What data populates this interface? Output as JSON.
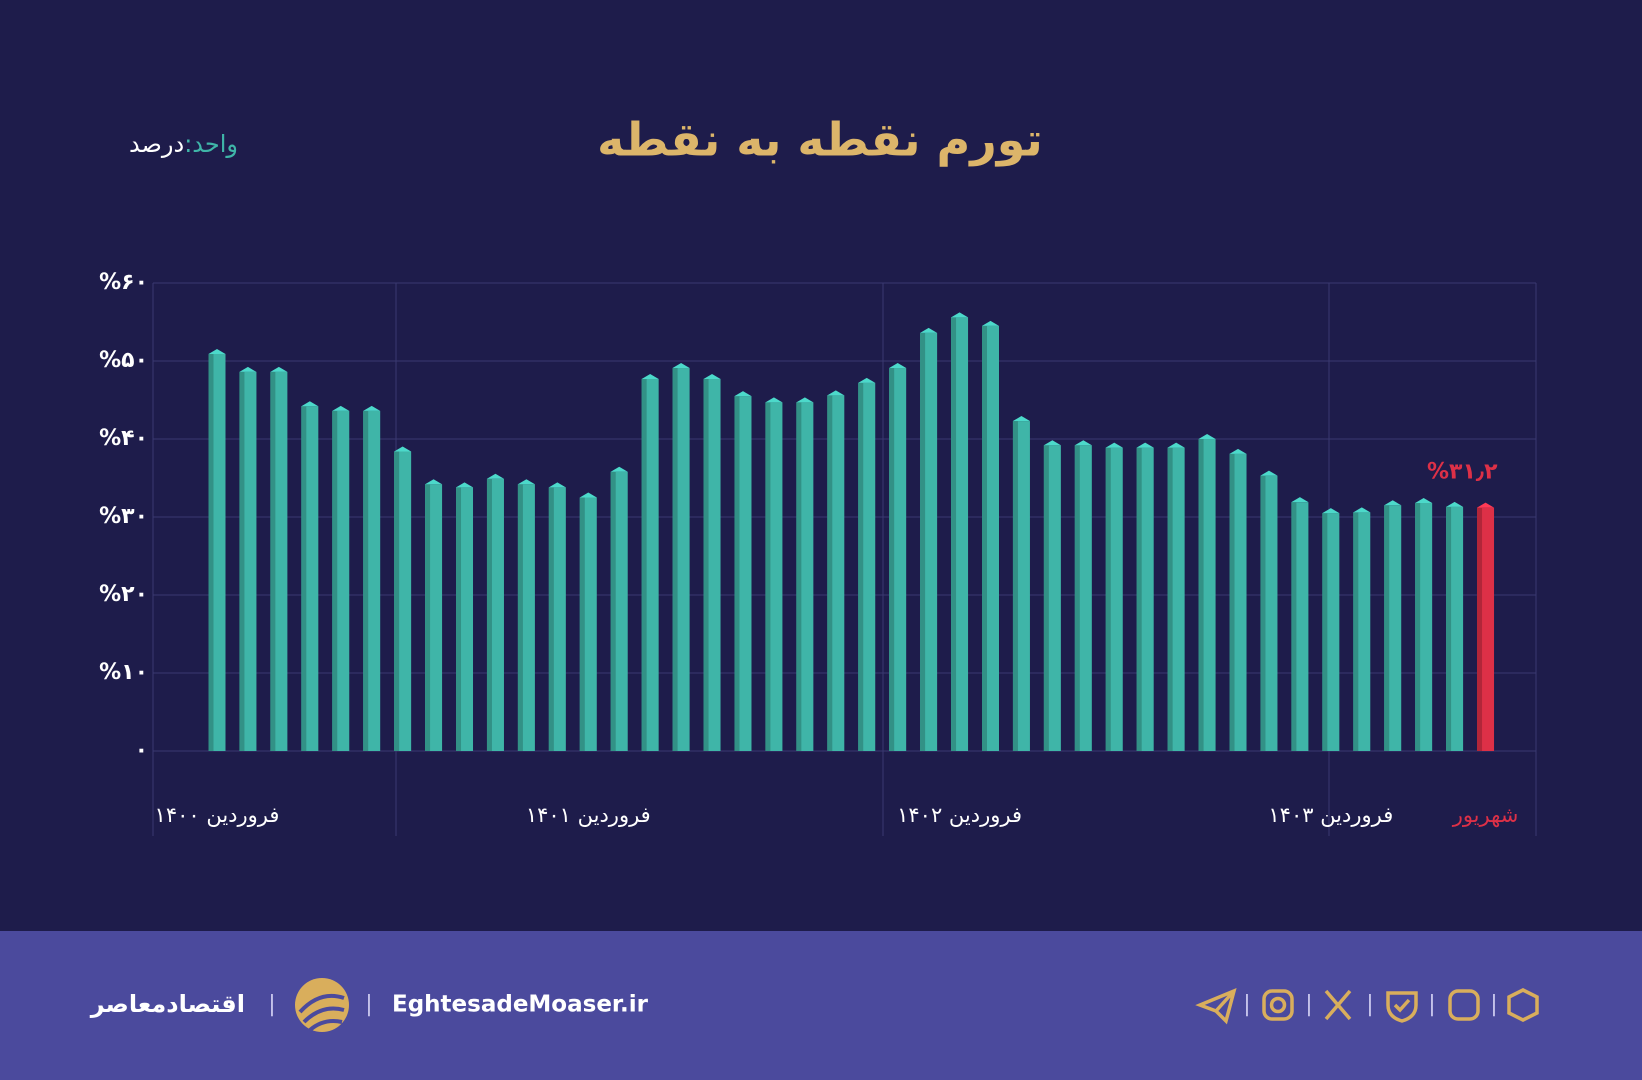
{
  "chart_data": {
    "type": "bar",
    "title": "تورم نقطه به نقطه",
    "unit_label": "واحد:",
    "unit": "درصد",
    "categories": [
      "فروردین ۱۴۰۰",
      null,
      null,
      null,
      null,
      null,
      null,
      null,
      null,
      null,
      null,
      null,
      "فروردین ۱۴۰۱",
      null,
      null,
      null,
      null,
      null,
      null,
      null,
      null,
      null,
      null,
      null,
      "فروردین ۱۴۰۲",
      null,
      null,
      null,
      null,
      null,
      null,
      null,
      null,
      null,
      null,
      null,
      "فروردین ۱۴۰۳",
      null,
      null,
      null,
      null,
      "شهریور"
    ],
    "values": [
      50.9,
      48.6,
      48.6,
      44.2,
      43.6,
      43.6,
      38.4,
      34.2,
      33.8,
      34.9,
      34.2,
      33.8,
      32.5,
      35.8,
      47.7,
      49.1,
      47.7,
      45.5,
      44.7,
      44.7,
      45.6,
      47.2,
      49.1,
      53.6,
      55.6,
      54.5,
      42.3,
      39.2,
      39.2,
      38.9,
      38.9,
      38.9,
      40.0,
      38.1,
      35.3,
      31.9,
      30.5,
      30.6,
      31.5,
      31.8,
      31.3,
      31.2
    ],
    "value_labels": [
      null,
      null,
      null,
      null,
      null,
      null,
      null,
      null,
      null,
      null,
      null,
      null,
      null,
      null,
      null,
      null,
      null,
      null,
      null,
      null,
      null,
      null,
      null,
      null,
      null,
      null,
      null,
      null,
      null,
      null,
      null,
      null,
      null,
      null,
      null,
      null,
      null,
      null,
      null,
      null,
      null,
      "%۳۱٫۲"
    ],
    "colors": [
      "#3fb5a8",
      "#3fb5a8",
      "#3fb5a8",
      "#3fb5a8",
      "#3fb5a8",
      "#3fb5a8",
      "#3fb5a8",
      "#3fb5a8",
      "#3fb5a8",
      "#3fb5a8",
      "#3fb5a8",
      "#3fb5a8",
      "#3fb5a8",
      "#3fb5a8",
      "#3fb5a8",
      "#3fb5a8",
      "#3fb5a8",
      "#3fb5a8",
      "#3fb5a8",
      "#3fb5a8",
      "#3fb5a8",
      "#3fb5a8",
      "#3fb5a8",
      "#3fb5a8",
      "#3fb5a8",
      "#3fb5a8",
      "#3fb5a8",
      "#3fb5a8",
      "#3fb5a8",
      "#3fb5a8",
      "#3fb5a8",
      "#3fb5a8",
      "#3fb5a8",
      "#3fb5a8",
      "#3fb5a8",
      "#3fb5a8",
      "#3fb5a8",
      "#3fb5a8",
      "#3fb5a8",
      "#3fb5a8",
      "#3fb5a8",
      "#dd3047"
    ],
    "ylim": [
      0,
      60
    ],
    "yticks": [
      {
        "value": 0,
        "label": "۰"
      },
      {
        "value": 10,
        "label": "%۱۰"
      },
      {
        "value": 20,
        "label": "%۲۰"
      },
      {
        "value": 30,
        "label": "%۳۰"
      },
      {
        "value": 40,
        "label": "%۴۰"
      },
      {
        "value": 50,
        "label": "%۵۰"
      },
      {
        "value": 60,
        "label": "%۶۰"
      }
    ],
    "grid": true
  },
  "footer": {
    "brand": "اقتصادمعاصر",
    "website": "EghtesadeMoaser.ir"
  }
}
